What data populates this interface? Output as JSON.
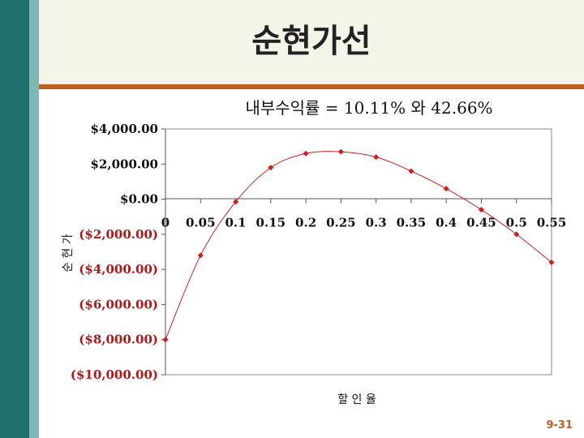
{
  "slide": {
    "title": "순현가선",
    "page_number": "9-31",
    "colors": {
      "left_bar": "#1f6f6f",
      "left_bar_light": "#7fb6b6",
      "header_background": "#f4f4e8",
      "rule": "#c0601f",
      "page_number": "#c0601f"
    }
  },
  "chart_data": {
    "type": "scatter",
    "subtitle": "내부수익률 = 10.11% 와  42.66%",
    "xlabel": "할 인 율",
    "ylabel": "순 현 가",
    "x_tick_labels": [
      "0",
      "0.05",
      "0.1",
      "0.15",
      "0.2",
      "0.25",
      "0.3",
      "0.35",
      "0.4",
      "0.45",
      "0.5",
      "0.55"
    ],
    "y_tick_labels": [
      "$4,000.00",
      "$2,000.00",
      "$0.00",
      "($2,000.00)",
      "($4,000.00)",
      "($6,000.00)",
      "($8,000.00)",
      "($10,000.00)"
    ],
    "xlim": [
      0,
      0.55
    ],
    "ylim": [
      -10000,
      4000
    ],
    "grid": false,
    "line_style": "smoothed",
    "series": [
      {
        "color": "#cc1f1f",
        "x": [
          0,
          0.05,
          0.1,
          0.15,
          0.2,
          0.25,
          0.3,
          0.35,
          0.4,
          0.45,
          0.5,
          0.55
        ],
        "y": [
          -8000,
          -3200,
          -150,
          1800,
          2600,
          2700,
          2400,
          1600,
          600,
          -600,
          -2000,
          -3600
        ]
      }
    ]
  }
}
